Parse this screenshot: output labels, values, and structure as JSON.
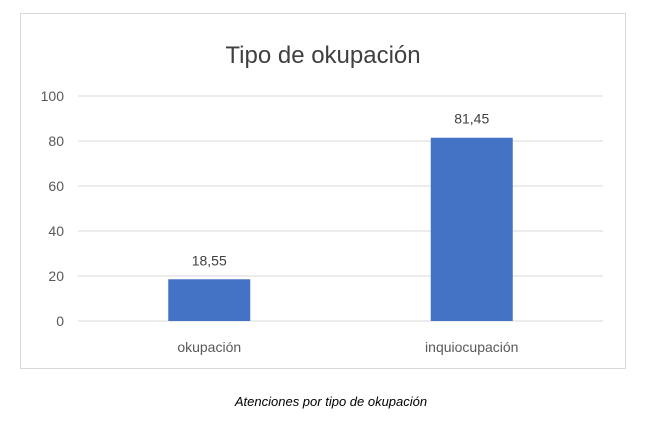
{
  "chart_data": {
    "type": "bar",
    "title": "Tipo de okupación",
    "categories": [
      "okupación",
      "inquiocupación"
    ],
    "values": [
      18.55,
      81.45
    ],
    "value_labels": [
      "18,55",
      "81,45"
    ],
    "ylim": [
      0,
      100
    ],
    "yticks": [
      0,
      20,
      40,
      60,
      80,
      100
    ],
    "xlabel": "",
    "ylabel": "",
    "grid": true,
    "legend": "none",
    "bar_color": "#4472c4"
  },
  "caption": "Atenciones por tipo de okupación"
}
